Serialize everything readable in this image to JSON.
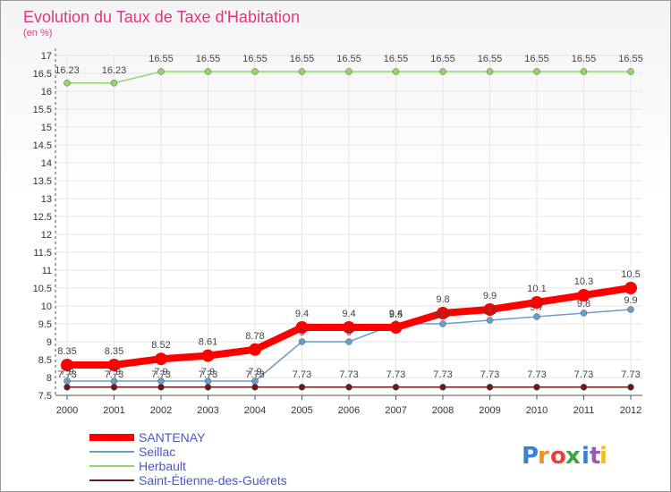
{
  "chart_data": {
    "type": "line",
    "title": "Evolution du Taux de Taxe d'Habitation",
    "subtitle": "(en %)",
    "xlabel": "",
    "ylabel": "",
    "categories": [
      "2000",
      "2001",
      "2002",
      "2003",
      "2004",
      "2005",
      "2006",
      "2007",
      "2008",
      "2009",
      "2010",
      "2011",
      "2012"
    ],
    "ylim": [
      7.5,
      17
    ],
    "yticks": [
      "7.5",
      "8",
      "8.5",
      "9",
      "9.5",
      "10",
      "10.5",
      "11",
      "11.5",
      "12",
      "12.5",
      "13",
      "13.5",
      "14",
      "14.5",
      "15",
      "15.5",
      "16",
      "16.5",
      "17"
    ],
    "series": [
      {
        "name": "SANTENAY",
        "color": "#ff0000",
        "values": [
          8.35,
          8.35,
          8.52,
          8.61,
          8.78,
          9.4,
          9.4,
          9.4,
          9.8,
          9.9,
          10.1,
          10.3,
          10.5
        ],
        "labels": [
          "8.35",
          "8.35",
          "8.52",
          "8.61",
          "8.78",
          "9.4",
          "9.4",
          "9.4",
          "9.8",
          "9.9",
          "10.1",
          "10.3",
          "10.5"
        ]
      },
      {
        "name": "Seillac",
        "color": "#6a9ec8",
        "values": [
          7.9,
          7.9,
          7.9,
          7.9,
          7.9,
          9.0,
          9.0,
          9.5,
          9.5,
          9.6,
          9.7,
          9.8,
          9.9
        ],
        "labels": [
          "7.9",
          "7.9",
          "7.9",
          "7.9",
          "7.9",
          "9",
          "9",
          "9.5",
          "9.5",
          "9.6",
          "9.7",
          "9.8",
          "9.9"
        ]
      },
      {
        "name": "Herbault",
        "color": "#8ed86a",
        "values": [
          16.23,
          16.23,
          16.55,
          16.55,
          16.55,
          16.55,
          16.55,
          16.55,
          16.55,
          16.55,
          16.55,
          16.55,
          16.55
        ],
        "labels": [
          "16.23",
          "16.23",
          "16.55",
          "16.55",
          "16.55",
          "16.55",
          "16.55",
          "16.55",
          "16.55",
          "16.55",
          "16.55",
          "16.55",
          "16.55"
        ]
      },
      {
        "name": "Saint-Étienne-des-Guérets",
        "color": "#6b1a1a",
        "values": [
          7.73,
          7.73,
          7.73,
          7.73,
          7.73,
          7.73,
          7.73,
          7.73,
          7.73,
          7.73,
          7.73,
          7.73,
          7.73
        ],
        "labels": [
          "7.73",
          "7.73",
          "7.73",
          "7.73",
          "7.73",
          "7.73",
          "7.73",
          "7.73",
          "7.73",
          "7.73",
          "7.73",
          "7.73",
          "7.73"
        ]
      }
    ],
    "legend": "bottom-left"
  },
  "logo": {
    "text": "Proxiti",
    "colors": [
      "#3a7fd5",
      "#f09020",
      "#e84040",
      "#38a838",
      "#3a7fd5",
      "#9b59b6",
      "#f0c020"
    ]
  }
}
